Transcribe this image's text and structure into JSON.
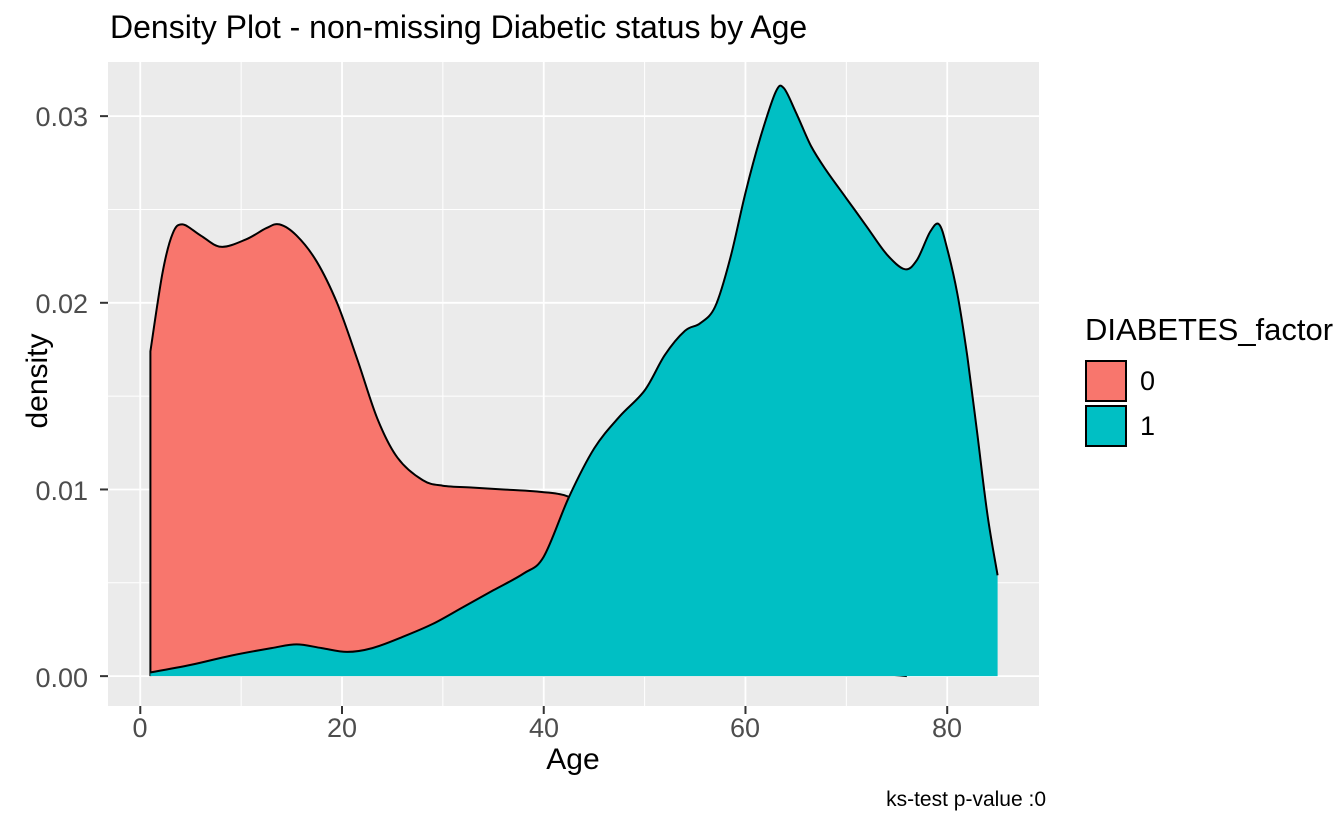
{
  "title": "Density Plot - non-missing Diabetic status by Age",
  "caption": "ks-test p-value :0",
  "axes": {
    "x": {
      "label": "Age",
      "ticks": [
        "0",
        "20",
        "40",
        "60",
        "80"
      ]
    },
    "y": {
      "label": "density",
      "ticks": [
        "0.00",
        "0.01",
        "0.02",
        "0.03"
      ]
    }
  },
  "legend": {
    "title": "DIABETES_factor",
    "items": [
      {
        "label": "0",
        "color": "#F8766D"
      },
      {
        "label": "1",
        "color": "#00BFC4"
      }
    ]
  },
  "colors": {
    "panel_bg": "#EBEBEB",
    "grid": "#FFFFFF",
    "outline": "#000000",
    "tick_text": "#4D4D4D",
    "tick_mark": "#333333"
  },
  "chart_data": {
    "type": "area",
    "subtype": "kernel-density",
    "title": "Density Plot - non-missing Diabetic status by Age",
    "xlabel": "Age",
    "ylabel": "density",
    "xlim": [
      -3.2,
      89.1
    ],
    "ylim": [
      -0.0016,
      0.0329
    ],
    "x_major_ticks": [
      0,
      20,
      40,
      60,
      80
    ],
    "x_minor_ticks": [
      10,
      30,
      50,
      70
    ],
    "y_major_ticks": [
      0,
      0.01,
      0.02,
      0.03
    ],
    "y_minor_ticks": [
      0.005,
      0.015,
      0.025
    ],
    "grid": "major+minor white on grey panel",
    "legend_position": "right",
    "data_age_range": [
      1,
      85
    ],
    "series": [
      {
        "name": "0",
        "fill": "#F8766D",
        "left_wall": true,
        "right_wall": false,
        "points": [
          [
            1,
            0.0174
          ],
          [
            2.2,
            0.0216
          ],
          [
            3.2,
            0.0237
          ],
          [
            4.2,
            0.0242
          ],
          [
            6,
            0.0236
          ],
          [
            8,
            0.023
          ],
          [
            10.5,
            0.0234
          ],
          [
            12.5,
            0.024
          ],
          [
            13.8,
            0.0242
          ],
          [
            15.5,
            0.0236
          ],
          [
            17.5,
            0.0222
          ],
          [
            19.5,
            0.02
          ],
          [
            21.5,
            0.017
          ],
          [
            23.5,
            0.0138
          ],
          [
            25.5,
            0.0117
          ],
          [
            28,
            0.0105
          ],
          [
            30,
            0.0102
          ],
          [
            33,
            0.0101
          ],
          [
            36,
            0.01
          ],
          [
            39,
            0.0099
          ],
          [
            42,
            0.0097
          ],
          [
            44,
            0.0091
          ],
          [
            47,
            0.008
          ],
          [
            50,
            0.0066
          ],
          [
            54,
            0.0047
          ],
          [
            58,
            0.003
          ],
          [
            62,
            0.0017
          ],
          [
            66,
            0.0008
          ],
          [
            70,
            0.0003
          ],
          [
            74,
            0.0001
          ],
          [
            76,
            0
          ]
        ]
      },
      {
        "name": "1",
        "fill": "#00BFC4",
        "left_wall": false,
        "right_wall": true,
        "points": [
          [
            1,
            0.0002
          ],
          [
            5,
            0.0006
          ],
          [
            9,
            0.0011
          ],
          [
            13,
            0.0015
          ],
          [
            15.5,
            0.0017
          ],
          [
            18,
            0.0015
          ],
          [
            20.5,
            0.0013
          ],
          [
            23,
            0.0015
          ],
          [
            26,
            0.0021
          ],
          [
            29,
            0.0028
          ],
          [
            32,
            0.0037
          ],
          [
            35,
            0.0046
          ],
          [
            38,
            0.0055
          ],
          [
            40,
            0.0064
          ],
          [
            42.5,
            0.0096
          ],
          [
            45,
            0.0122
          ],
          [
            47.5,
            0.0139
          ],
          [
            50,
            0.0153
          ],
          [
            52,
            0.0172
          ],
          [
            54,
            0.0185
          ],
          [
            55.5,
            0.0189
          ],
          [
            57,
            0.0198
          ],
          [
            58.5,
            0.0224
          ],
          [
            60,
            0.0259
          ],
          [
            61.5,
            0.0289
          ],
          [
            63,
            0.0313
          ],
          [
            63.8,
            0.0315
          ],
          [
            65,
            0.0302
          ],
          [
            66.5,
            0.0284
          ],
          [
            68,
            0.0271
          ],
          [
            70,
            0.0256
          ],
          [
            72,
            0.0241
          ],
          [
            74,
            0.0226
          ],
          [
            75.8,
            0.0218
          ],
          [
            77,
            0.0223
          ],
          [
            78.3,
            0.0238
          ],
          [
            79.2,
            0.0242
          ],
          [
            80,
            0.0229
          ],
          [
            81,
            0.0205
          ],
          [
            82,
            0.0171
          ],
          [
            83,
            0.0129
          ],
          [
            84,
            0.0086
          ],
          [
            85,
            0.0054
          ]
        ]
      }
    ]
  }
}
